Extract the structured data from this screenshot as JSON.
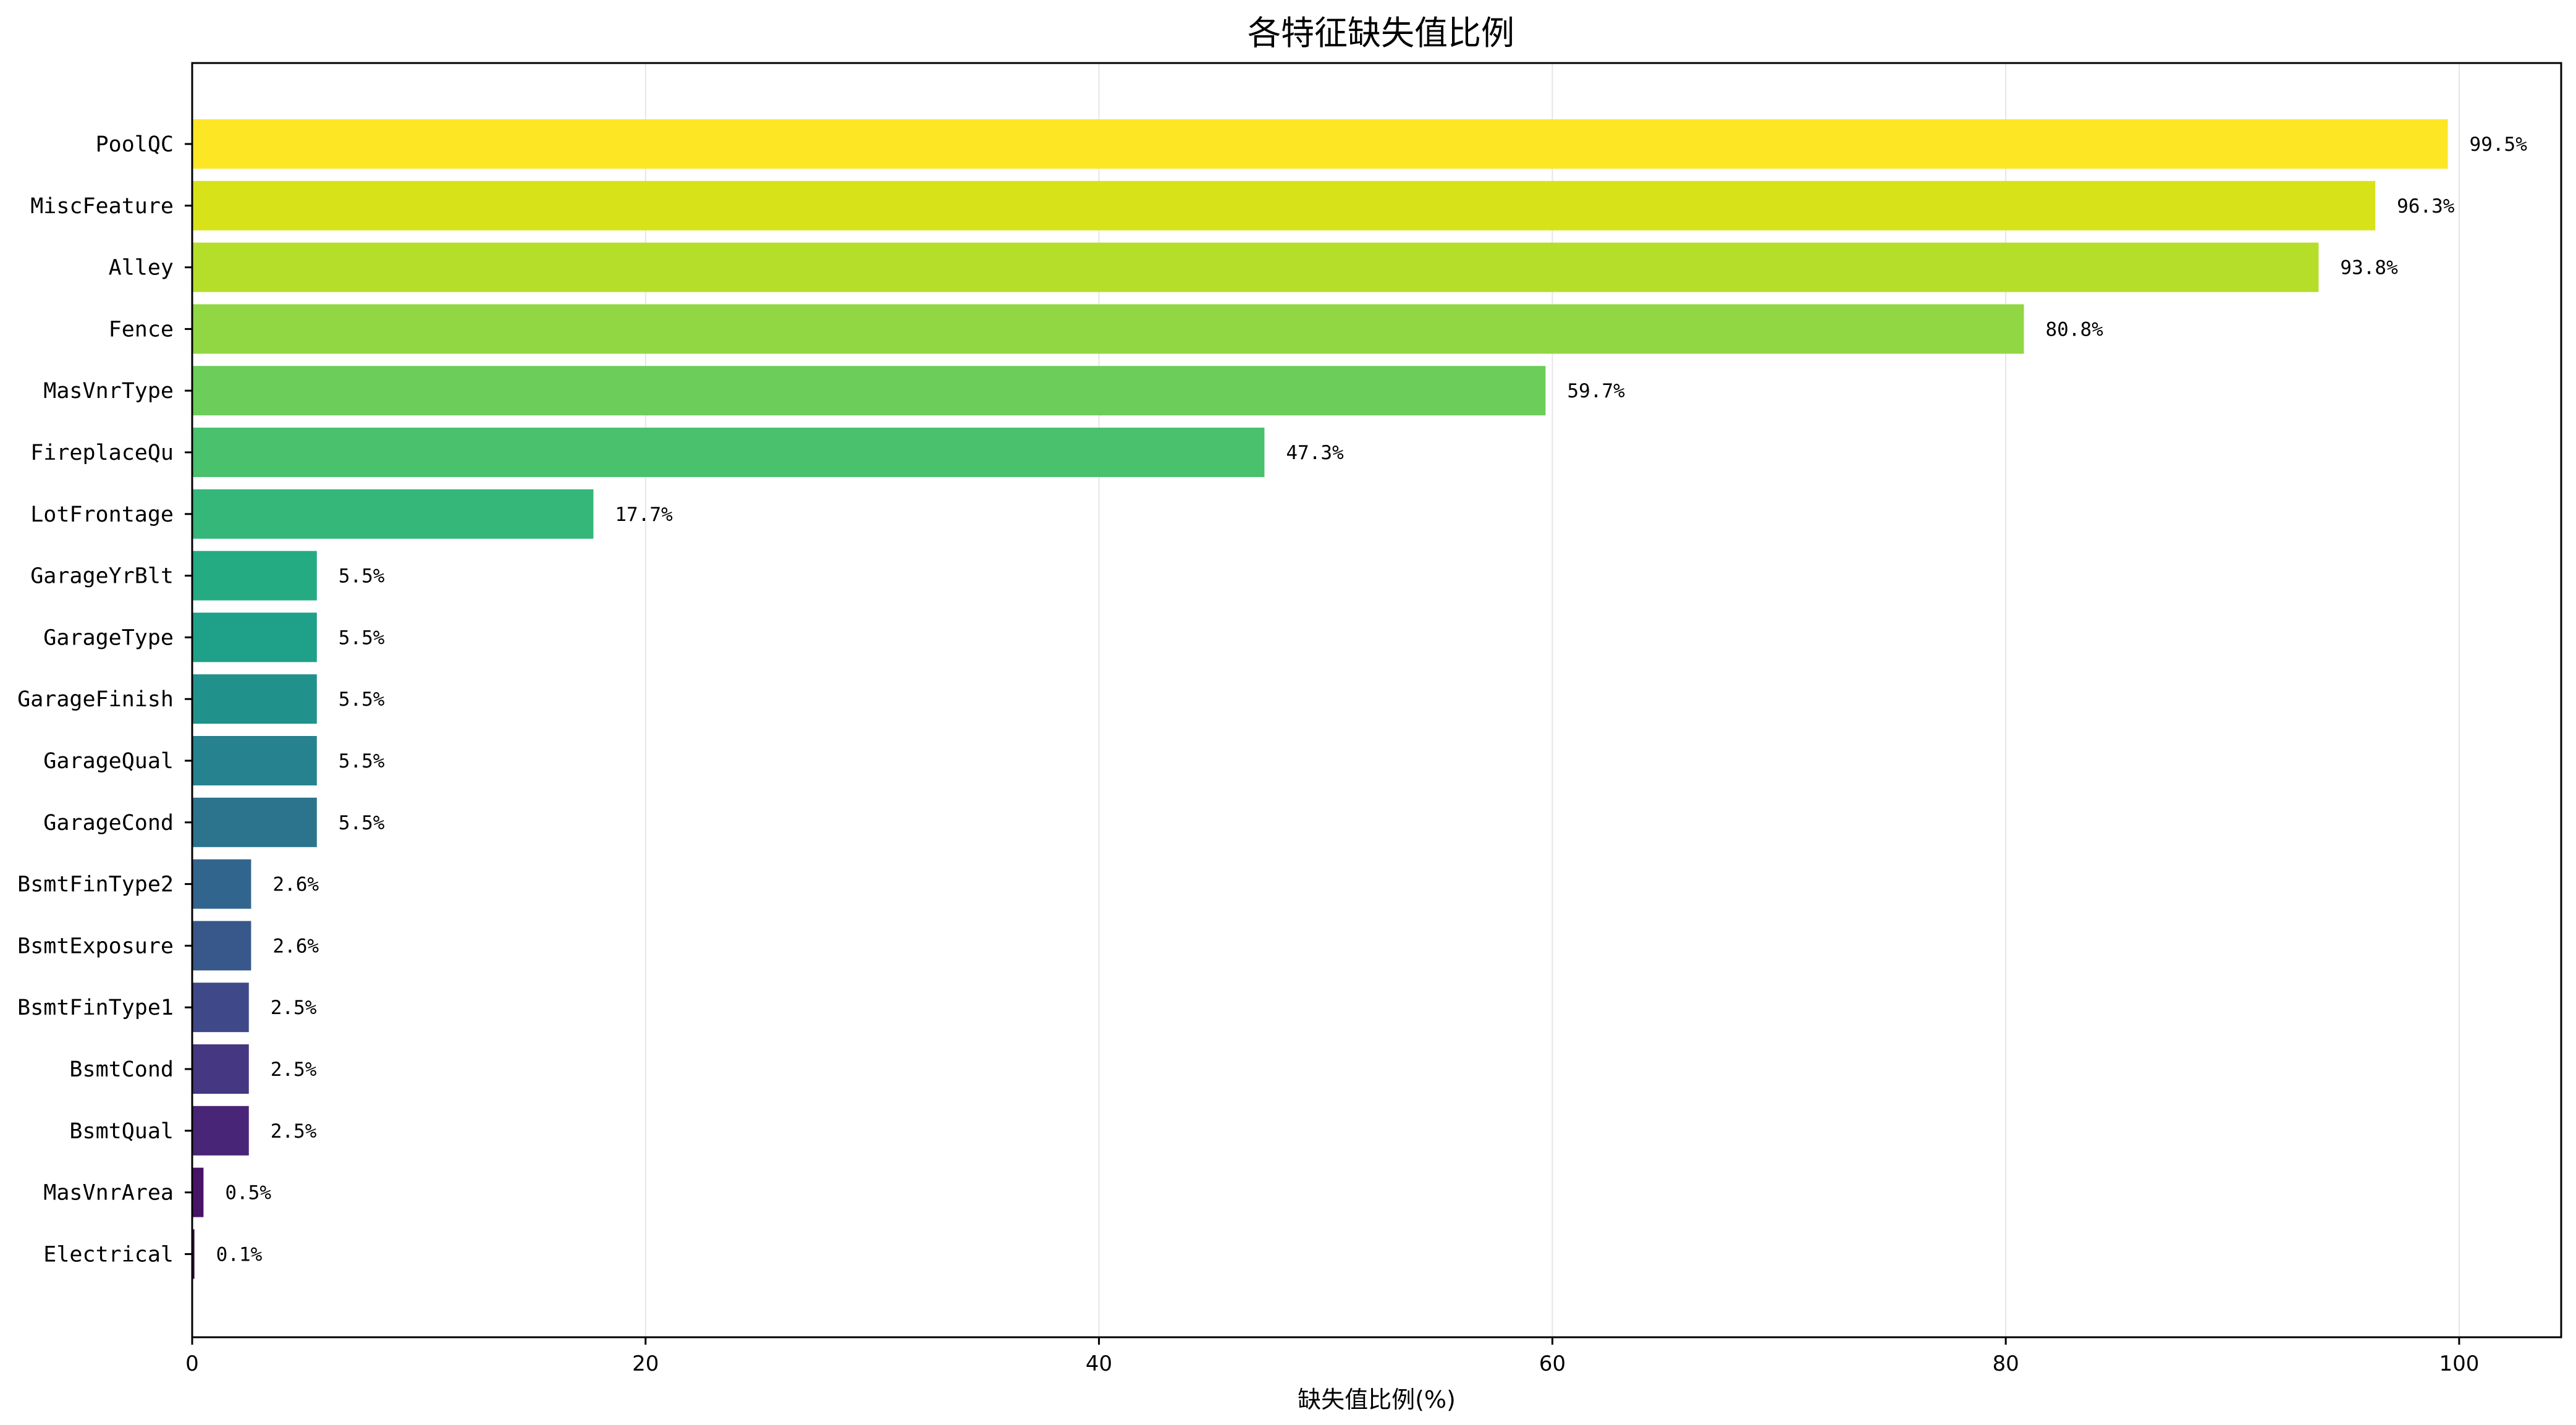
{
  "chart_data": {
    "type": "bar",
    "orientation": "horizontal",
    "title": "各特征缺失值比例",
    "xlabel": "缺失值比例(%)",
    "ylabel": "",
    "xlim": [
      0,
      104.5
    ],
    "xticks": [
      0,
      20,
      40,
      60,
      80,
      100
    ],
    "grid": "vertical",
    "categories": [
      "PoolQC",
      "MiscFeature",
      "Alley",
      "Fence",
      "MasVnrType",
      "FireplaceQu",
      "LotFrontage",
      "GarageYrBlt",
      "GarageType",
      "GarageFinish",
      "GarageQual",
      "GarageCond",
      "BsmtFinType2",
      "BsmtExposure",
      "BsmtFinType1",
      "BsmtCond",
      "BsmtQual",
      "MasVnrArea",
      "Electrical"
    ],
    "values": [
      99.5,
      96.3,
      93.8,
      80.8,
      59.7,
      47.3,
      17.7,
      5.5,
      5.5,
      5.5,
      5.5,
      5.5,
      2.6,
      2.6,
      2.5,
      2.5,
      2.5,
      0.5,
      0.1
    ],
    "value_labels": [
      "99.5%",
      "96.3%",
      "93.8%",
      "80.8%",
      "59.7%",
      "47.3%",
      "17.7%",
      "5.5%",
      "5.5%",
      "5.5%",
      "5.5%",
      "5.5%",
      "2.6%",
      "2.6%",
      "2.5%",
      "2.5%",
      "2.5%",
      "0.5%",
      "0.1%"
    ],
    "colors": [
      "#fde725",
      "#d8e219",
      "#b5de2b",
      "#90d743",
      "#6ccd5a",
      "#4ac16d",
      "#35b779",
      "#25ab82",
      "#1fa088",
      "#21918c",
      "#26828e",
      "#2c738e",
      "#32658e",
      "#38588c",
      "#3f4889",
      "#453781",
      "#482576",
      "#481467",
      "#440154"
    ]
  }
}
